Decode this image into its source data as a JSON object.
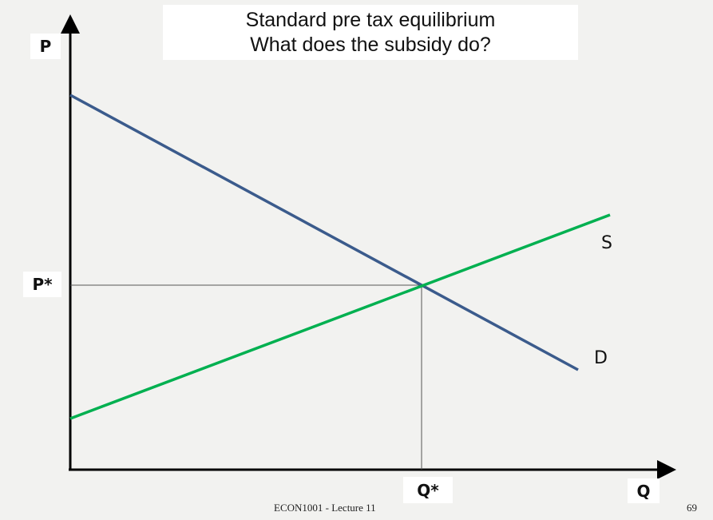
{
  "title": {
    "line1": "Standard pre tax equilibrium",
    "line2": "What does the subsidy do?"
  },
  "axes": {
    "y_label": "P",
    "x_label": "Q",
    "y_marker": "P*",
    "x_marker": "Q*"
  },
  "curves": {
    "supply_label": "S",
    "demand_label": "D",
    "supply_color": "#00b050",
    "demand_color": "#3b5b8c"
  },
  "footer": {
    "course": "ECON1001 - Lecture 11",
    "page_number": "69"
  }
}
